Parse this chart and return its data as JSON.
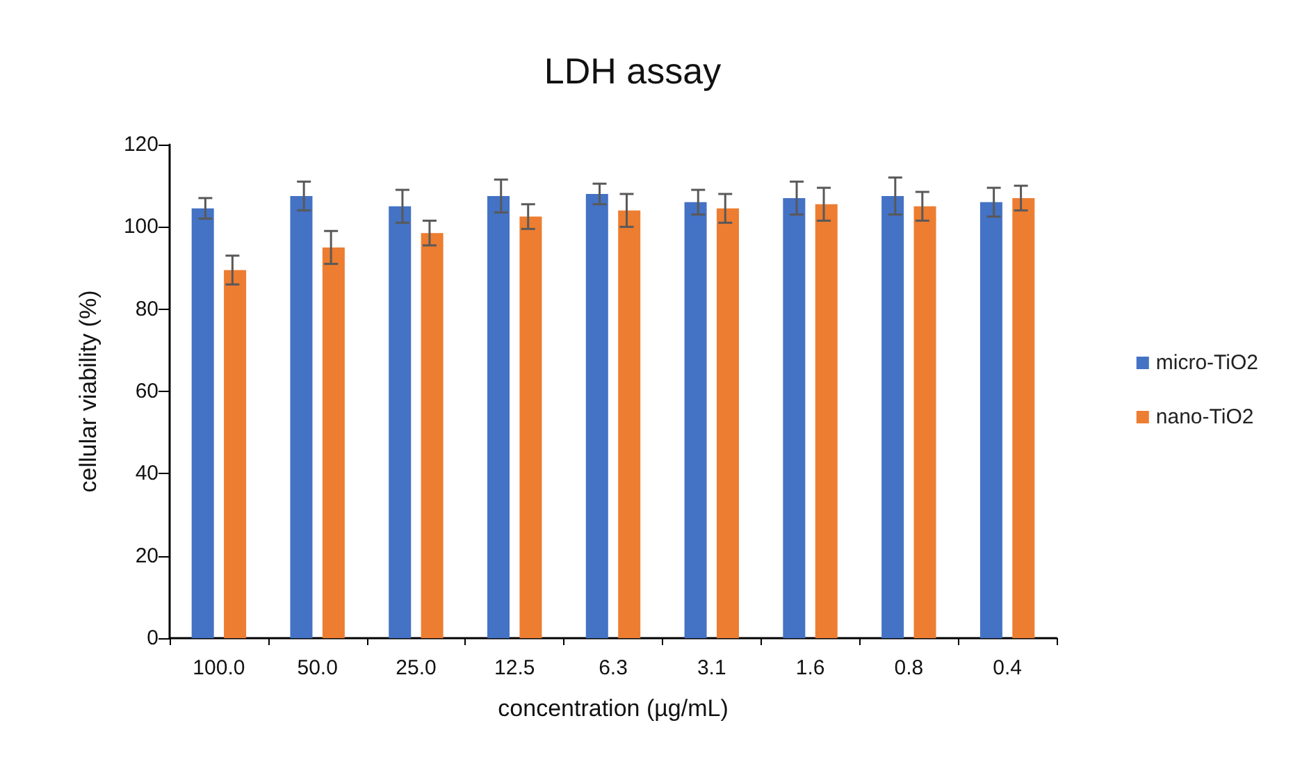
{
  "chart_data": {
    "type": "bar",
    "title": "LDH assay",
    "xlabel": "concentration (µg/mL)",
    "ylabel": "cellular viability (%)",
    "categories": [
      "100.0",
      "50.0",
      "25.0",
      "12.5",
      "6.3",
      "3.1",
      "1.6",
      "0.8",
      "0.4"
    ],
    "series": [
      {
        "name": "micro-TiO2",
        "color": "#4472c4",
        "values": [
          104.5,
          107.5,
          105,
          107.5,
          108,
          106,
          107,
          107.5,
          106
        ],
        "errors": [
          2.5,
          3.5,
          4,
          4,
          2.5,
          3,
          4,
          4.5,
          3.5
        ]
      },
      {
        "name": "nano-TiO2",
        "color": "#ed7d31",
        "values": [
          89.5,
          95,
          98.5,
          102.5,
          104,
          104.5,
          105.5,
          105,
          107
        ],
        "errors": [
          3.5,
          4,
          3,
          3,
          4,
          3.5,
          4,
          3.5,
          3
        ]
      }
    ],
    "ylim": [
      0,
      120
    ],
    "yticks": [
      0,
      20,
      40,
      60,
      80,
      100,
      120
    ],
    "grid": false,
    "legend": "right"
  }
}
